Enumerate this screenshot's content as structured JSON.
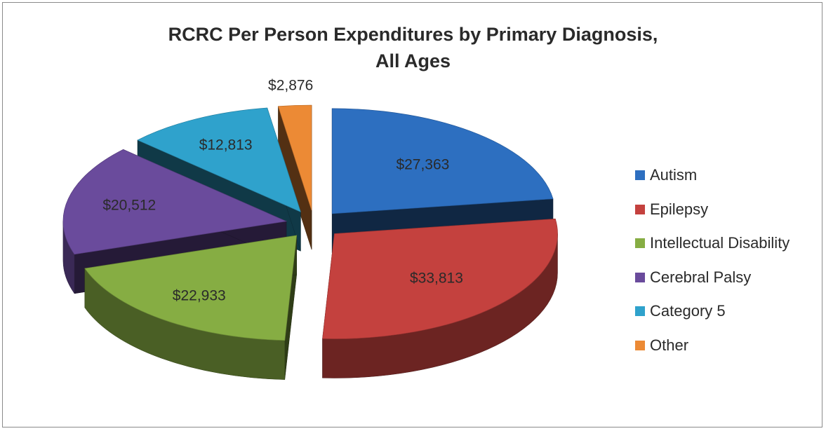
{
  "chart_data": {
    "type": "pie",
    "title": "RCRC Per Person Expenditures by Primary Diagnosis,",
    "title_line2": "All Ages",
    "categories": [
      "Autism",
      "Epilepsy",
      "Intellectual Disability",
      "Cerebral Palsy",
      "Category 5",
      "Other"
    ],
    "values": [
      27363,
      33813,
      22933,
      20512,
      12813,
      2876
    ],
    "value_labels": [
      "$27,363",
      "$33,813",
      "$22,933",
      "$20,512",
      "$12,813",
      "$2,876"
    ],
    "colors": [
      "#2d6fc0",
      "#c4413e",
      "#86ad43",
      "#6a4b9c",
      "#2fa2cc",
      "#ec8a35"
    ],
    "legend_position": "right",
    "style": "3d-exploded"
  }
}
